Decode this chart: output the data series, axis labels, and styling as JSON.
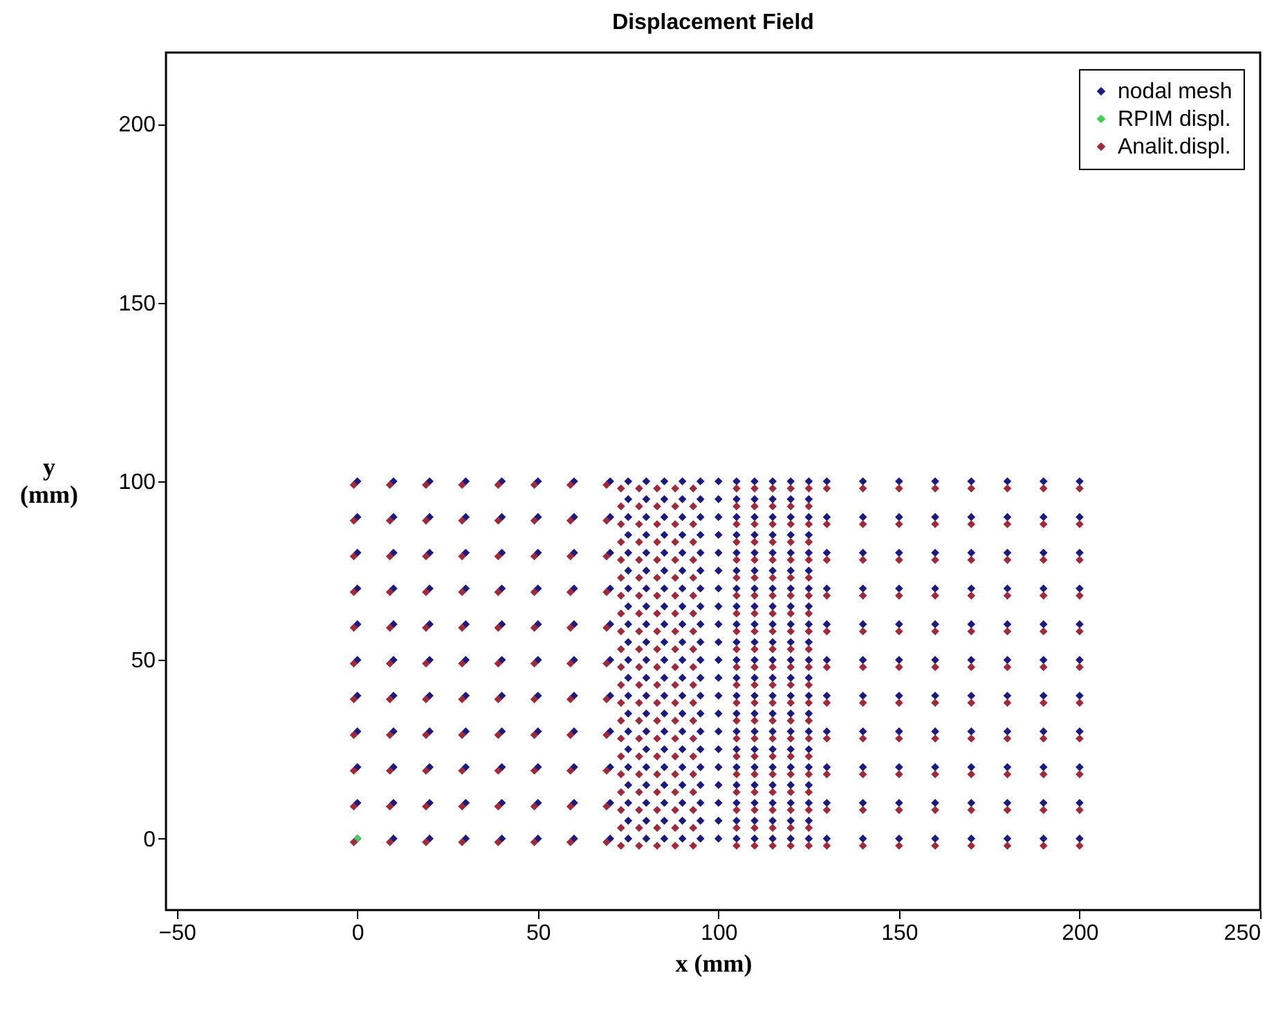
{
  "chart_data": {
    "type": "scatter",
    "title": "Displacement Field",
    "xlabel": "x (mm)",
    "ylabel": "y (mm)",
    "xlim": [
      -53,
      250
    ],
    "ylim": [
      -20,
      220
    ],
    "xticks": [
      -50,
      0,
      50,
      100,
      150,
      200,
      250
    ],
    "yticks": [
      0,
      50,
      100,
      150,
      200
    ],
    "marker": "diamond",
    "legend": "top right",
    "grid": false,
    "series": [
      {
        "name": "nodal mesh",
        "color": "#1a1a80",
        "x": [
          0,
          0,
          0,
          0,
          0,
          0,
          0,
          0,
          0,
          0,
          0,
          10,
          10,
          10,
          10,
          10,
          10,
          10,
          10,
          10,
          10,
          10,
          20,
          20,
          20,
          20,
          20,
          20,
          20,
          20,
          20,
          20,
          20,
          30,
          30,
          30,
          30,
          30,
          30,
          30,
          30,
          30,
          30,
          30,
          40,
          40,
          40,
          40,
          40,
          40,
          40,
          40,
          40,
          40,
          40,
          50,
          50,
          50,
          50,
          50,
          50,
          50,
          50,
          50,
          50,
          50,
          60,
          60,
          60,
          60,
          60,
          60,
          60,
          60,
          60,
          60,
          60,
          70,
          70,
          70,
          70,
          70,
          70,
          70,
          70,
          70,
          70,
          70,
          75,
          75,
          75,
          75,
          75,
          75,
          75,
          75,
          75,
          75,
          75,
          75,
          75,
          75,
          75,
          75,
          75,
          75,
          75,
          75,
          75,
          80,
          80,
          80,
          80,
          80,
          80,
          80,
          80,
          80,
          80,
          80,
          80,
          80,
          80,
          80,
          80,
          80,
          80,
          80,
          80,
          80,
          85,
          85,
          85,
          85,
          85,
          85,
          85,
          85,
          85,
          85,
          85,
          85,
          85,
          85,
          85,
          85,
          85,
          85,
          85,
          85,
          85,
          90,
          90,
          90,
          90,
          90,
          90,
          90,
          90,
          90,
          90,
          90,
          90,
          90,
          90,
          90,
          90,
          90,
          90,
          90,
          90,
          90,
          95,
          95,
          95,
          95,
          95,
          95,
          95,
          95,
          95,
          95,
          95,
          95,
          95,
          95,
          95,
          95,
          95,
          95,
          95,
          95,
          95,
          100,
          100,
          100,
          100,
          100,
          100,
          100,
          100,
          100,
          100,
          100,
          100,
          100,
          100,
          100,
          100,
          100,
          100,
          100,
          100,
          100,
          105,
          105,
          105,
          105,
          105,
          105,
          105,
          105,
          105,
          105,
          105,
          105,
          105,
          105,
          105,
          105,
          105,
          105,
          105,
          105,
          105,
          110,
          110,
          110,
          110,
          110,
          110,
          110,
          110,
          110,
          110,
          110,
          110,
          110,
          110,
          110,
          110,
          110,
          110,
          110,
          110,
          110,
          115,
          115,
          115,
          115,
          115,
          115,
          115,
          115,
          115,
          115,
          115,
          115,
          115,
          115,
          115,
          115,
          115,
          115,
          115,
          115,
          115,
          120,
          120,
          120,
          120,
          120,
          120,
          120,
          120,
          120,
          120,
          120,
          120,
          120,
          120,
          120,
          120,
          120,
          120,
          120,
          120,
          120,
          125,
          125,
          125,
          125,
          125,
          125,
          125,
          125,
          125,
          125,
          125,
          125,
          125,
          125,
          125,
          125,
          125,
          125,
          125,
          125,
          125,
          130,
          130,
          130,
          130,
          130,
          130,
          130,
          130,
          130,
          130,
          130,
          140,
          140,
          140,
          140,
          140,
          140,
          140,
          140,
          140,
          140,
          140,
          150,
          150,
          150,
          150,
          150,
          150,
          150,
          150,
          150,
          150,
          150,
          160,
          160,
          160,
          160,
          160,
          160,
          160,
          160,
          160,
          160,
          160,
          170,
          170,
          170,
          170,
          170,
          170,
          170,
          170,
          170,
          170,
          170,
          180,
          180,
          180,
          180,
          180,
          180,
          180,
          180,
          180,
          180,
          180,
          190,
          190,
          190,
          190,
          190,
          190,
          190,
          190,
          190,
          190,
          190,
          200,
          200,
          200,
          200,
          200,
          200,
          200,
          200,
          200,
          200,
          200
        ],
        "values": [
          0,
          10,
          20,
          30,
          40,
          50,
          60,
          70,
          80,
          90,
          100,
          0,
          10,
          20,
          30,
          40,
          50,
          60,
          70,
          80,
          90,
          100,
          0,
          10,
          20,
          30,
          40,
          50,
          60,
          70,
          80,
          90,
          100,
          0,
          10,
          20,
          30,
          40,
          50,
          60,
          70,
          80,
          90,
          100,
          0,
          10,
          20,
          30,
          40,
          50,
          60,
          70,
          80,
          90,
          100,
          0,
          10,
          20,
          30,
          40,
          50,
          60,
          70,
          80,
          90,
          100,
          0,
          10,
          20,
          30,
          40,
          50,
          60,
          70,
          80,
          90,
          100,
          0,
          10,
          20,
          30,
          40,
          50,
          60,
          70,
          80,
          90,
          100,
          0,
          5,
          10,
          15,
          20,
          25,
          30,
          35,
          40,
          45,
          50,
          55,
          60,
          65,
          70,
          75,
          80,
          85,
          90,
          95,
          100,
          0,
          5,
          10,
          15,
          20,
          25,
          30,
          35,
          40,
          45,
          50,
          55,
          60,
          65,
          70,
          75,
          80,
          85,
          90,
          95,
          100,
          0,
          5,
          10,
          15,
          20,
          25,
          30,
          35,
          40,
          45,
          50,
          55,
          60,
          65,
          70,
          75,
          80,
          85,
          90,
          95,
          100,
          0,
          5,
          10,
          15,
          20,
          25,
          30,
          35,
          40,
          45,
          50,
          55,
          60,
          65,
          70,
          75,
          80,
          85,
          90,
          95,
          100,
          0,
          5,
          10,
          15,
          20,
          25,
          30,
          35,
          40,
          45,
          50,
          55,
          60,
          65,
          70,
          75,
          80,
          85,
          90,
          95,
          100,
          0,
          5,
          10,
          15,
          20,
          25,
          30,
          35,
          40,
          45,
          50,
          55,
          60,
          65,
          70,
          75,
          80,
          85,
          90,
          95,
          100,
          0,
          5,
          10,
          15,
          20,
          25,
          30,
          35,
          40,
          45,
          50,
          55,
          60,
          65,
          70,
          75,
          80,
          85,
          90,
          95,
          100,
          0,
          5,
          10,
          15,
          20,
          25,
          30,
          35,
          40,
          45,
          50,
          55,
          60,
          65,
          70,
          75,
          80,
          85,
          90,
          95,
          100,
          0,
          5,
          10,
          15,
          20,
          25,
          30,
          35,
          40,
          45,
          50,
          55,
          60,
          65,
          70,
          75,
          80,
          85,
          90,
          95,
          100,
          0,
          5,
          10,
          15,
          20,
          25,
          30,
          35,
          40,
          45,
          50,
          55,
          60,
          65,
          70,
          75,
          80,
          85,
          90,
          95,
          100,
          0,
          5,
          10,
          15,
          20,
          25,
          30,
          35,
          40,
          45,
          50,
          55,
          60,
          65,
          70,
          75,
          80,
          85,
          90,
          95,
          100,
          0,
          10,
          20,
          30,
          40,
          50,
          60,
          70,
          80,
          90,
          100,
          0,
          10,
          20,
          30,
          40,
          50,
          60,
          70,
          80,
          90,
          100,
          0,
          10,
          20,
          30,
          40,
          50,
          60,
          70,
          80,
          90,
          100,
          0,
          10,
          20,
          30,
          40,
          50,
          60,
          70,
          80,
          90,
          100,
          0,
          10,
          20,
          30,
          40,
          50,
          60,
          70,
          80,
          90,
          100,
          0,
          10,
          20,
          30,
          40,
          50,
          60,
          70,
          80,
          90,
          100,
          0,
          10,
          20,
          30,
          40,
          50,
          60,
          70,
          80,
          90,
          100,
          0,
          10,
          20,
          30,
          40,
          50,
          60,
          70,
          80,
          90,
          100
        ]
      },
      {
        "name": "RPIM displ.",
        "color": "#3ccf5a",
        "x": [
          0
        ],
        "values": [
          0
        ]
      },
      {
        "name": "Analit.displ.",
        "color": "#9e2a3c",
        "x": [
          -1,
          -1,
          -1,
          -1,
          -1,
          -1,
          -1,
          -1,
          -1,
          -1,
          -1,
          9,
          9,
          9,
          9,
          9,
          9,
          9,
          9,
          9,
          9,
          9,
          19,
          19,
          19,
          19,
          19,
          19,
          19,
          19,
          19,
          19,
          19,
          29,
          29,
          29,
          29,
          29,
          29,
          29,
          29,
          29,
          29,
          29,
          39,
          39,
          39,
          39,
          39,
          39,
          39,
          39,
          39,
          39,
          39,
          49,
          49,
          49,
          49,
          49,
          49,
          49,
          49,
          49,
          49,
          49,
          59,
          59,
          59,
          59,
          59,
          59,
          59,
          59,
          59,
          59,
          59,
          69,
          69,
          69,
          69,
          69,
          69,
          69,
          69,
          69,
          69,
          69,
          73,
          73,
          73,
          73,
          73,
          73,
          73,
          73,
          73,
          73,
          73,
          73,
          73,
          73,
          73,
          73,
          73,
          73,
          73,
          73,
          73,
          78,
          78,
          78,
          78,
          78,
          78,
          78,
          78,
          78,
          78,
          78,
          78,
          78,
          78,
          78,
          78,
          78,
          78,
          78,
          78,
          78,
          83,
          83,
          83,
          83,
          83,
          83,
          83,
          83,
          83,
          83,
          83,
          83,
          83,
          83,
          83,
          83,
          83,
          83,
          83,
          83,
          83,
          88,
          88,
          88,
          88,
          88,
          88,
          88,
          88,
          88,
          88,
          88,
          88,
          88,
          88,
          88,
          88,
          88,
          88,
          88,
          88,
          88,
          93,
          93,
          93,
          93,
          93,
          93,
          93,
          93,
          93,
          93,
          93,
          93,
          93,
          93,
          93,
          93,
          93,
          93,
          93,
          93,
          93,
          105,
          105,
          105,
          105,
          105,
          105,
          105,
          105,
          105,
          105,
          105,
          105,
          105,
          105,
          105,
          105,
          105,
          105,
          105,
          105,
          105,
          110,
          110,
          110,
          110,
          110,
          110,
          110,
          110,
          110,
          110,
          110,
          110,
          110,
          110,
          110,
          110,
          110,
          110,
          110,
          110,
          110,
          115,
          115,
          115,
          115,
          115,
          115,
          115,
          115,
          115,
          115,
          115,
          115,
          115,
          115,
          115,
          115,
          115,
          115,
          115,
          115,
          115,
          120,
          120,
          120,
          120,
          120,
          120,
          120,
          120,
          120,
          120,
          120,
          120,
          120,
          120,
          120,
          120,
          120,
          120,
          120,
          120,
          120,
          125,
          125,
          125,
          125,
          125,
          125,
          125,
          125,
          125,
          125,
          125,
          125,
          125,
          125,
          125,
          125,
          125,
          125,
          125,
          125,
          125,
          130,
          130,
          130,
          130,
          130,
          130,
          130,
          130,
          130,
          130,
          130,
          140,
          140,
          140,
          140,
          140,
          140,
          140,
          140,
          140,
          140,
          140,
          150,
          150,
          150,
          150,
          150,
          150,
          150,
          150,
          150,
          150,
          150,
          160,
          160,
          160,
          160,
          160,
          160,
          160,
          160,
          160,
          160,
          160,
          170,
          170,
          170,
          170,
          170,
          170,
          170,
          170,
          170,
          170,
          170,
          180,
          180,
          180,
          180,
          180,
          180,
          180,
          180,
          180,
          180,
          180,
          190,
          190,
          190,
          190,
          190,
          190,
          190,
          190,
          190,
          190,
          190,
          200,
          200,
          200,
          200,
          200,
          200,
          200,
          200,
          200,
          200,
          200
        ],
        "values": [
          -1,
          9,
          19,
          29,
          39,
          49,
          59,
          69,
          79,
          89,
          99,
          -1,
          9,
          19,
          29,
          39,
          49,
          59,
          69,
          79,
          89,
          99,
          -1,
          9,
          19,
          29,
          39,
          49,
          59,
          69,
          79,
          89,
          99,
          -1,
          9,
          19,
          29,
          39,
          49,
          59,
          69,
          79,
          89,
          99,
          -1,
          9,
          19,
          29,
          39,
          49,
          59,
          69,
          79,
          89,
          99,
          -1,
          9,
          19,
          29,
          39,
          49,
          59,
          69,
          79,
          89,
          99,
          -1,
          9,
          19,
          29,
          39,
          49,
          59,
          69,
          79,
          89,
          99,
          -1,
          9,
          19,
          29,
          39,
          49,
          59,
          69,
          79,
          89,
          99,
          -2,
          3,
          8,
          13,
          18,
          23,
          28,
          33,
          38,
          43,
          48,
          53,
          58,
          63,
          68,
          73,
          78,
          83,
          88,
          93,
          98,
          -2,
          3,
          8,
          13,
          18,
          23,
          28,
          33,
          38,
          43,
          48,
          53,
          58,
          63,
          68,
          73,
          78,
          83,
          88,
          93,
          98,
          -2,
          3,
          8,
          13,
          18,
          23,
          28,
          33,
          38,
          43,
          48,
          53,
          58,
          63,
          68,
          73,
          78,
          83,
          88,
          93,
          98,
          -2,
          3,
          8,
          13,
          18,
          23,
          28,
          33,
          38,
          43,
          48,
          53,
          58,
          63,
          68,
          73,
          78,
          83,
          88,
          93,
          98,
          -2,
          3,
          8,
          13,
          18,
          23,
          28,
          33,
          38,
          43,
          48,
          53,
          58,
          63,
          68,
          73,
          78,
          83,
          88,
          93,
          98,
          -2,
          3,
          8,
          13,
          18,
          23,
          28,
          33,
          38,
          43,
          48,
          53,
          58,
          63,
          68,
          73,
          78,
          83,
          88,
          93,
          98,
          -2,
          3,
          8,
          13,
          18,
          23,
          28,
          33,
          38,
          43,
          48,
          53,
          58,
          63,
          68,
          73,
          78,
          83,
          88,
          93,
          98,
          -2,
          3,
          8,
          13,
          18,
          23,
          28,
          33,
          38,
          43,
          48,
          53,
          58,
          63,
          68,
          73,
          78,
          83,
          88,
          93,
          98,
          -2,
          3,
          8,
          13,
          18,
          23,
          28,
          33,
          38,
          43,
          48,
          53,
          58,
          63,
          68,
          73,
          78,
          83,
          88,
          93,
          98,
          -2,
          3,
          8,
          13,
          18,
          23,
          28,
          33,
          38,
          43,
          48,
          53,
          58,
          63,
          68,
          73,
          78,
          83,
          88,
          93,
          98,
          -2,
          8,
          18,
          28,
          38,
          48,
          58,
          68,
          78,
          88,
          98,
          -2,
          8,
          18,
          28,
          38,
          48,
          58,
          68,
          78,
          88,
          98,
          -2,
          8,
          18,
          28,
          38,
          48,
          58,
          68,
          78,
          88,
          98,
          -2,
          8,
          18,
          28,
          38,
          48,
          58,
          68,
          78,
          88,
          98,
          -2,
          8,
          18,
          28,
          38,
          48,
          58,
          68,
          78,
          88,
          98,
          -2,
          8,
          18,
          28,
          38,
          48,
          58,
          68,
          78,
          88,
          98,
          -2,
          8,
          18,
          28,
          38,
          48,
          58,
          68,
          78,
          88,
          98,
          -2,
          8,
          18,
          28,
          38,
          48,
          58,
          68,
          78,
          88,
          98
        ]
      }
    ]
  }
}
